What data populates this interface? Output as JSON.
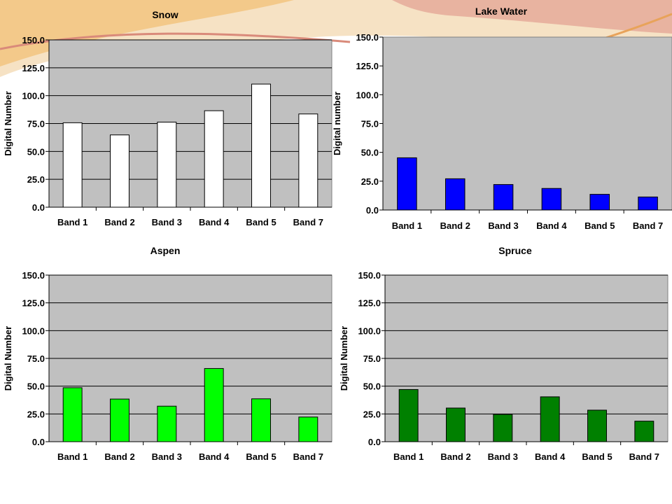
{
  "theme": {
    "deco_colors": [
      "#f3c98a",
      "#e8a35a",
      "#d98a7a",
      "#f6e2c4"
    ],
    "plot_bg": "#c0c0c0",
    "grid": "#000000"
  },
  "chart_data": [
    {
      "type": "bar",
      "title": "Snow",
      "ylabel": "Digital Number",
      "categories": [
        "Band 1",
        "Band 2",
        "Band 3",
        "Band 4",
        "Band 5",
        "Band 7"
      ],
      "values": [
        75.7,
        64.8,
        76.3,
        86.5,
        110.4,
        83.6
      ],
      "ylim": [
        0,
        150
      ],
      "yticks": [
        "0.0",
        "25.0",
        "50.0",
        "75.0",
        "100.0",
        "125.0",
        "150.0"
      ],
      "color": "#ffffff",
      "grid": true
    },
    {
      "type": "bar",
      "title": "Lake Water",
      "ylabel": "Digital number",
      "categories": [
        "Band 1",
        "Band 2",
        "Band 3",
        "Band 4",
        "Band 5",
        "Band 7"
      ],
      "values": [
        45.3,
        27.1,
        22.1,
        18.7,
        13.6,
        11.3
      ],
      "ylim": [
        0,
        150
      ],
      "yticks": [
        "0.0",
        "25.0",
        "50.0",
        "75.0",
        "100.0",
        "125.0",
        "150.0"
      ],
      "color": "#0000ff",
      "grid": false
    },
    {
      "type": "bar",
      "title": "Aspen",
      "ylabel": "Digital Number",
      "categories": [
        "Band 1",
        "Band 2",
        "Band 3",
        "Band 4",
        "Band 5",
        "Band 7"
      ],
      "values": [
        48.6,
        38.4,
        32.0,
        65.9,
        38.6,
        22.2
      ],
      "ylim": [
        0,
        150
      ],
      "yticks": [
        "0.0",
        "25.0",
        "50.0",
        "75.0",
        "100.0",
        "125.0",
        "150.0"
      ],
      "color": "#00ff00",
      "grid": true
    },
    {
      "type": "bar",
      "title": "Spruce",
      "ylabel": "Digital Number",
      "categories": [
        "Band 1",
        "Band 2",
        "Band 3",
        "Band 4",
        "Band 5",
        "Band 7"
      ],
      "values": [
        47.0,
        30.3,
        24.6,
        40.4,
        28.4,
        18.5
      ],
      "ylim": [
        0,
        150
      ],
      "yticks": [
        "0.0",
        "25.0",
        "50.0",
        "75.0",
        "100.0",
        "125.0",
        "150.0"
      ],
      "color": "#008000",
      "grid": true
    }
  ]
}
